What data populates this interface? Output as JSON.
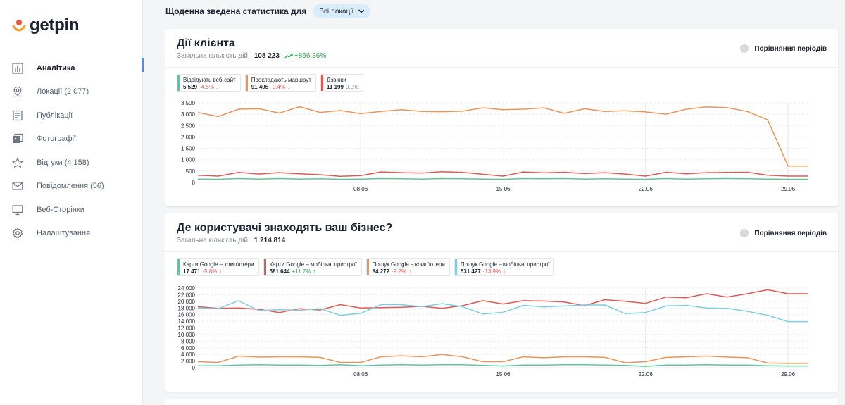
{
  "app": {
    "logo_text": "getpin"
  },
  "sidebar": {
    "items": [
      {
        "label": "Аналітика",
        "icon": "bar-chart-icon",
        "active": true
      },
      {
        "label": "Локації (2 077)",
        "icon": "location-pin-icon",
        "active": false
      },
      {
        "label": "Публікації",
        "icon": "document-icon",
        "active": false
      },
      {
        "label": "Фотографії",
        "icon": "photos-icon",
        "active": false
      },
      {
        "label": "Відгуки (4 158)",
        "icon": "star-icon",
        "active": false
      },
      {
        "label": "Повідомлення (56)",
        "icon": "mail-icon",
        "active": false
      },
      {
        "label": "Веб-Сторінки",
        "icon": "monitor-icon",
        "active": false
      },
      {
        "label": "Налаштування",
        "icon": "gear-icon",
        "active": false
      }
    ]
  },
  "header": {
    "title": "Щоденна зведена статистика для",
    "location_select": "Всі локації"
  },
  "colors": {
    "green": "#5dc79b",
    "orange": "#e8955a",
    "red": "#de5a55",
    "cyan": "#7fcfe0",
    "accent": "#4b8df8"
  },
  "card1": {
    "title": "Дії клієнта",
    "total_label": "Загальна кількість дій:",
    "total_value": "108 223",
    "total_change": "+866.36%",
    "compare_label": "Порівняння періодів",
    "legend": [
      {
        "name": "Відвідують веб-сайт",
        "value": "5 529",
        "change": "-4.5%",
        "trend": "down",
        "color": "#5dc79b"
      },
      {
        "name": "Прокладають маршрут",
        "value": "91 495",
        "change": "-0.4%",
        "trend": "down",
        "color": "#e8955a"
      },
      {
        "name": "Дзвінки",
        "value": "11 199",
        "change": "0.0%",
        "trend": "flat",
        "color": "#de5a55"
      }
    ]
  },
  "card2": {
    "title": "Де користувачі знаходять ваш бізнес?",
    "total_label": "Загальна кількість дій:",
    "total_value": "1 214 814",
    "compare_label": "Порівняння періодів",
    "legend": [
      {
        "name": "Карти Google – комп'ютери",
        "value": "17 471",
        "change": "-5.8%",
        "trend": "down",
        "color": "#5dc79b"
      },
      {
        "name": "Карти Google – мобільні пристрої",
        "value": "581 644",
        "change": "+11.7%",
        "trend": "up",
        "color": "#de5a55"
      },
      {
        "name": "Пошук Google – комп'ютери",
        "value": "84 272",
        "change": "-9.2%",
        "trend": "down",
        "color": "#e8955a"
      },
      {
        "name": "Пошук Google – мобільні пристрої",
        "value": "531 427",
        "change": "-13.9%",
        "trend": "down",
        "color": "#7fcfe0"
      }
    ]
  },
  "chart_data": [
    {
      "type": "line",
      "ylim": [
        0,
        3500
      ],
      "yticks": [
        "0",
        "500",
        "1 000",
        "1 500",
        "2 000",
        "2 500",
        "3 000",
        "3 500"
      ],
      "ytick_values": [
        0,
        500,
        1000,
        1500,
        2000,
        2500,
        3000,
        3500
      ],
      "xticks": [
        {
          "label": "08.06",
          "index": 8
        },
        {
          "label": "15.06",
          "index": 15
        },
        {
          "label": "22.06",
          "index": 22
        },
        {
          "label": "29.06",
          "index": 29
        }
      ],
      "n_points": 31,
      "series": [
        {
          "name": "Прокладають маршрут",
          "color": "#e8955a",
          "values": [
            3080,
            2900,
            3220,
            3240,
            3050,
            3330,
            3080,
            3160,
            3030,
            3120,
            3200,
            3120,
            3110,
            3130,
            3280,
            3200,
            3220,
            3280,
            3040,
            3240,
            3120,
            3150,
            3100,
            3000,
            3220,
            3320,
            3290,
            3120,
            2750,
            720,
            720
          ]
        },
        {
          "name": "Дзвінки",
          "color": "#de5a55",
          "values": [
            320,
            280,
            440,
            370,
            430,
            380,
            340,
            270,
            300,
            460,
            430,
            410,
            470,
            440,
            360,
            280,
            460,
            420,
            450,
            390,
            430,
            370,
            280,
            450,
            380,
            430,
            440,
            450,
            320,
            280,
            280
          ]
        },
        {
          "name": "Відвідують веб-сайт",
          "color": "#5dc79b",
          "values": [
            150,
            140,
            170,
            150,
            170,
            150,
            160,
            140,
            150,
            170,
            160,
            150,
            170,
            160,
            150,
            140,
            170,
            160,
            170,
            150,
            160,
            150,
            140,
            170,
            150,
            160,
            170,
            160,
            150,
            140,
            140
          ]
        }
      ]
    },
    {
      "type": "line",
      "ylim": [
        0,
        24000
      ],
      "yticks": [
        "0",
        "2 000",
        "4 000",
        "6 000",
        "8 000",
        "10 000",
        "12 000",
        "14 000",
        "16 000",
        "18 000",
        "20 000",
        "22 000",
        "24 000"
      ],
      "ytick_values": [
        0,
        2000,
        4000,
        6000,
        8000,
        10000,
        12000,
        14000,
        16000,
        18000,
        20000,
        22000,
        24000
      ],
      "xticks": [
        {
          "label": "08.06",
          "index": 8
        },
        {
          "label": "15.06",
          "index": 15
        },
        {
          "label": "22.06",
          "index": 22
        },
        {
          "label": "29.06",
          "index": 29
        }
      ],
      "n_points": 31,
      "series": [
        {
          "name": "Карти Google – мобільні пристрої",
          "color": "#de5a55",
          "values": [
            18400,
            17900,
            18000,
            17600,
            16600,
            17800,
            17400,
            19000,
            18000,
            18100,
            18200,
            18500,
            17900,
            18700,
            20200,
            19200,
            20200,
            20100,
            19800,
            18700,
            20500,
            20000,
            19400,
            21300,
            21100,
            22300,
            21300,
            22300,
            23500,
            22300,
            22300
          ]
        },
        {
          "name": "Пошук Google – мобільні пристрої",
          "color": "#7fcfe0",
          "values": [
            18000,
            17800,
            20200,
            17200,
            17500,
            17300,
            17800,
            15800,
            16400,
            19000,
            19000,
            18400,
            19300,
            18400,
            16200,
            16700,
            18800,
            18300,
            18600,
            18900,
            18900,
            16300,
            16600,
            18600,
            18800,
            18000,
            17900,
            17000,
            15800,
            13900,
            13900
          ]
        },
        {
          "name": "Пошук Google – комп'ютери",
          "color": "#e8955a",
          "values": [
            1800,
            1600,
            3500,
            3200,
            3300,
            3300,
            3100,
            1600,
            1600,
            3300,
            3600,
            3300,
            4000,
            3300,
            1800,
            1800,
            3300,
            3000,
            3300,
            3300,
            3100,
            1500,
            1800,
            3100,
            3300,
            3500,
            3200,
            3000,
            1400,
            1300,
            1300
          ]
        },
        {
          "name": "Карти Google – комп'ютери",
          "color": "#5dc79b",
          "values": [
            600,
            600,
            800,
            900,
            800,
            800,
            700,
            900,
            600,
            800,
            900,
            800,
            900,
            900,
            700,
            500,
            800,
            800,
            900,
            900,
            800,
            700,
            400,
            800,
            800,
            900,
            800,
            800,
            600,
            500,
            500
          ]
        }
      ]
    }
  ]
}
